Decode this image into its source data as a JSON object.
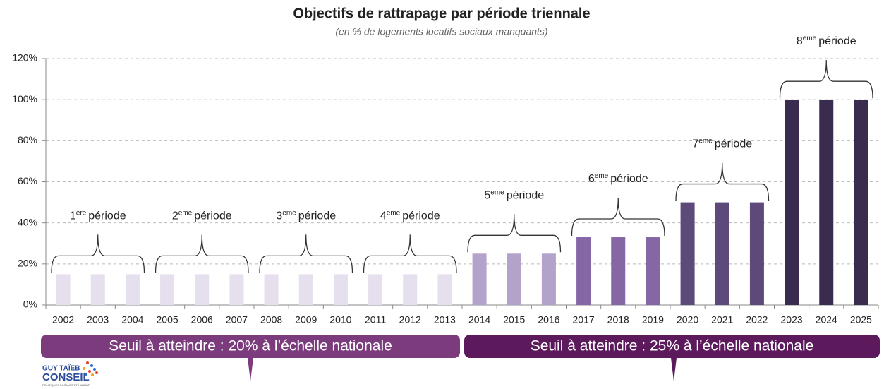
{
  "chart_data": {
    "type": "bar",
    "title": "Objectifs de rattrapage par période triennale",
    "subtitle": "(en % de logements locatifs sociaux manquants)",
    "categories": [
      "2002",
      "2003",
      "2004",
      "2005",
      "2006",
      "2007",
      "2008",
      "2009",
      "2010",
      "2011",
      "2012",
      "2013",
      "2014",
      "2015",
      "2016",
      "2017",
      "2018",
      "2019",
      "2020",
      "2021",
      "2022",
      "2023",
      "2024",
      "2025"
    ],
    "values": [
      15,
      15,
      15,
      15,
      15,
      15,
      15,
      15,
      15,
      15,
      15,
      15,
      25,
      25,
      25,
      33,
      33,
      33,
      50,
      50,
      50,
      100,
      100,
      100
    ],
    "colors": [
      "#e6e0ee",
      "#e6e0ee",
      "#e6e0ee",
      "#e6e0ee",
      "#e6e0ee",
      "#e6e0ee",
      "#e6e0ee",
      "#e6e0ee",
      "#e6e0ee",
      "#e6e0ee",
      "#e6e0ee",
      "#e6e0ee",
      "#b3a2c9",
      "#b3a2c9",
      "#b3a2c9",
      "#8667a6",
      "#8667a6",
      "#8667a6",
      "#5d4a7b",
      "#5d4a7b",
      "#5d4a7b",
      "#3a2c4f",
      "#3a2c4f",
      "#3a2c4f"
    ],
    "ylim": [
      0,
      120
    ],
    "yticks": [
      {
        "value": 0,
        "label": "0%"
      },
      {
        "value": 20,
        "label": "20%"
      },
      {
        "value": 40,
        "label": "40%"
      },
      {
        "value": 60,
        "label": "60%"
      },
      {
        "value": 80,
        "label": "80%"
      },
      {
        "value": 100,
        "label": "100%"
      },
      {
        "value": 120,
        "label": "120%"
      }
    ],
    "grid": true,
    "periods": [
      {
        "number": "1",
        "suffix": "ere",
        "text": "période"
      },
      {
        "number": "2",
        "suffix": "eme",
        "text": "période"
      },
      {
        "number": "3",
        "suffix": "eme",
        "text": "période"
      },
      {
        "number": "4",
        "suffix": "eme",
        "text": "période"
      },
      {
        "number": "5",
        "suffix": "eme",
        "text": "période"
      },
      {
        "number": "6",
        "suffix": "eme",
        "text": "période"
      },
      {
        "number": "7",
        "suffix": "eme",
        "text": "période"
      },
      {
        "number": "8",
        "suffix": "eme",
        "text": "période"
      }
    ],
    "banners": [
      {
        "text": "Seuil à atteindre : 20% à l’échelle nationale",
        "color": "#7b3b7c"
      },
      {
        "text": "Seuil à atteindre : 25% à l’échelle nationale",
        "color": "#5c1a5c"
      }
    ],
    "logo": {
      "line1": "GUY TAÏEB",
      "line2": "CONSEIL",
      "line3": "POLITIQUES LOCALES ET HABITAT"
    }
  }
}
